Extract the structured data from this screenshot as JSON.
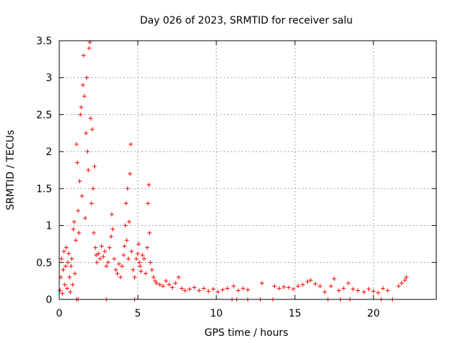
{
  "chart_data": {
    "type": "scatter",
    "title": "Day 026 of 2023, SRMTID for receiver salu",
    "xlabel": "GPS time / hours",
    "ylabel": "SRMTID / TECUs",
    "xlim": [
      0,
      24
    ],
    "ylim": [
      0,
      3.5
    ],
    "xticks": [
      0,
      5,
      10,
      15,
      20
    ],
    "yticks": [
      0,
      0.5,
      1,
      1.5,
      2,
      2.5,
      3,
      3.5
    ],
    "xtick_labels": [
      "0",
      "5",
      "10",
      "15",
      "20"
    ],
    "ytick_labels": [
      "0",
      "0.5",
      "1",
      "1.5",
      "2",
      "2.5",
      "3",
      "3.5"
    ],
    "grid": true,
    "marker": "+",
    "series": [
      {
        "name": "SRMTID",
        "color": "#ff0000",
        "points": [
          [
            0.05,
            0.12
          ],
          [
            0.1,
            0.3
          ],
          [
            0.15,
            0.55
          ],
          [
            0.2,
            0.08
          ],
          [
            0.25,
            0.4
          ],
          [
            0.3,
            0.65
          ],
          [
            0.35,
            0.2
          ],
          [
            0.4,
            0.45
          ],
          [
            0.45,
            0.7
          ],
          [
            0.5,
            0.15
          ],
          [
            0.55,
            0.5
          ],
          [
            0.6,
            0.62
          ],
          [
            0.65,
            0.3
          ],
          [
            0.7,
            0.1
          ],
          [
            0.75,
            0.45
          ],
          [
            0.8,
            0.55
          ],
          [
            0.85,
            0.2
          ],
          [
            0.9,
            0.95
          ],
          [
            0.95,
            1.05
          ],
          [
            1.0,
            0.35
          ],
          [
            1.05,
            0.8
          ],
          [
            1.1,
            2.1
          ],
          [
            1.15,
            1.85
          ],
          [
            1.2,
            1.2
          ],
          [
            1.25,
            0.9
          ],
          [
            1.3,
            1.6
          ],
          [
            1.35,
            2.5
          ],
          [
            1.4,
            2.6
          ],
          [
            1.45,
            1.4
          ],
          [
            1.5,
            2.9
          ],
          [
            1.55,
            3.3
          ],
          [
            1.6,
            2.75
          ],
          [
            1.65,
            1.1
          ],
          [
            1.7,
            2.25
          ],
          [
            1.75,
            3.0
          ],
          [
            1.8,
            2.0
          ],
          [
            1.85,
            1.75
          ],
          [
            1.9,
            3.4
          ],
          [
            1.95,
            3.48
          ],
          [
            2.0,
            2.45
          ],
          [
            2.05,
            1.3
          ],
          [
            2.1,
            2.3
          ],
          [
            2.15,
            1.5
          ],
          [
            2.2,
            0.9
          ],
          [
            2.25,
            1.8
          ],
          [
            2.3,
            0.7
          ],
          [
            2.35,
            0.6
          ],
          [
            2.4,
            0.5
          ],
          [
            2.5,
            0.62
          ],
          [
            2.6,
            0.55
          ],
          [
            2.7,
            0.72
          ],
          [
            2.8,
            0.58
          ],
          [
            2.9,
            0.65
          ],
          [
            3.0,
            0.45
          ],
          [
            3.1,
            0.5
          ],
          [
            3.2,
            0.7
          ],
          [
            3.3,
            0.85
          ],
          [
            3.35,
            1.15
          ],
          [
            3.4,
            0.95
          ],
          [
            3.5,
            0.55
          ],
          [
            3.6,
            0.4
          ],
          [
            3.7,
            0.35
          ],
          [
            3.8,
            0.48
          ],
          [
            3.9,
            0.3
          ],
          [
            4.0,
            0.45
          ],
          [
            4.1,
            0.6
          ],
          [
            4.15,
            0.72
          ],
          [
            4.2,
            1.0
          ],
          [
            4.25,
            1.3
          ],
          [
            4.3,
            0.8
          ],
          [
            4.35,
            1.5
          ],
          [
            4.4,
            0.55
          ],
          [
            4.45,
            1.05
          ],
          [
            4.5,
            1.7
          ],
          [
            4.55,
            2.1
          ],
          [
            4.6,
            0.65
          ],
          [
            4.7,
            0.4
          ],
          [
            4.8,
            0.3
          ],
          [
            4.9,
            0.55
          ],
          [
            5.0,
            0.62
          ],
          [
            5.05,
            0.75
          ],
          [
            5.1,
            0.5
          ],
          [
            5.15,
            0.45
          ],
          [
            5.2,
            0.38
          ],
          [
            5.3,
            0.6
          ],
          [
            5.4,
            0.55
          ],
          [
            5.5,
            0.35
          ],
          [
            5.6,
            0.7
          ],
          [
            5.65,
            1.3
          ],
          [
            5.7,
            1.55
          ],
          [
            5.75,
            0.9
          ],
          [
            5.8,
            0.5
          ],
          [
            5.9,
            0.4
          ],
          [
            6.0,
            0.3
          ],
          [
            6.1,
            0.25
          ],
          [
            6.2,
            0.22
          ],
          [
            6.4,
            0.2
          ],
          [
            6.6,
            0.18
          ],
          [
            6.8,
            0.25
          ],
          [
            7.0,
            0.2
          ],
          [
            7.2,
            0.16
          ],
          [
            7.4,
            0.22
          ],
          [
            7.6,
            0.3
          ],
          [
            7.8,
            0.15
          ],
          [
            8.0,
            0.12
          ],
          [
            8.3,
            0.14
          ],
          [
            8.6,
            0.16
          ],
          [
            8.9,
            0.12
          ],
          [
            9.2,
            0.15
          ],
          [
            9.5,
            0.11
          ],
          [
            9.8,
            0.14
          ],
          [
            10.1,
            0.1
          ],
          [
            10.4,
            0.13
          ],
          [
            10.7,
            0.15
          ],
          [
            11.1,
            0.18
          ],
          [
            11.4,
            0.12
          ],
          [
            11.7,
            0.15
          ],
          [
            12.0,
            0.13
          ],
          [
            12.9,
            0.22
          ],
          [
            13.7,
            0.18
          ],
          [
            14.0,
            0.15
          ],
          [
            14.3,
            0.17
          ],
          [
            14.6,
            0.16
          ],
          [
            14.9,
            0.14
          ],
          [
            15.2,
            0.18
          ],
          [
            15.5,
            0.2
          ],
          [
            15.8,
            0.24
          ],
          [
            16.0,
            0.26
          ],
          [
            16.3,
            0.21
          ],
          [
            16.6,
            0.18
          ],
          [
            16.9,
            0.1
          ],
          [
            17.3,
            0.18
          ],
          [
            17.5,
            0.28
          ],
          [
            17.8,
            0.12
          ],
          [
            18.1,
            0.15
          ],
          [
            18.4,
            0.22
          ],
          [
            18.7,
            0.14
          ],
          [
            19.0,
            0.12
          ],
          [
            19.4,
            0.1
          ],
          [
            19.7,
            0.14
          ],
          [
            20.0,
            0.11
          ],
          [
            20.3,
            0.09
          ],
          [
            20.6,
            0.15
          ],
          [
            20.9,
            0.12
          ],
          [
            21.6,
            0.18
          ],
          [
            21.8,
            0.22
          ],
          [
            22.0,
            0.26
          ],
          [
            22.1,
            0.3
          ],
          [
            1.1,
            0.0
          ],
          [
            1.2,
            0.0
          ],
          [
            3.0,
            0.0
          ],
          [
            4.8,
            0.0
          ],
          [
            11.0,
            0.0
          ],
          [
            11.3,
            0.0
          ],
          [
            12.0,
            0.0
          ],
          [
            12.8,
            0.0
          ],
          [
            13.6,
            0.0
          ],
          [
            17.1,
            0.0
          ],
          [
            17.9,
            0.0
          ],
          [
            18.5,
            0.0
          ],
          [
            20.5,
            0.0
          ],
          [
            21.2,
            0.0
          ]
        ]
      }
    ]
  }
}
